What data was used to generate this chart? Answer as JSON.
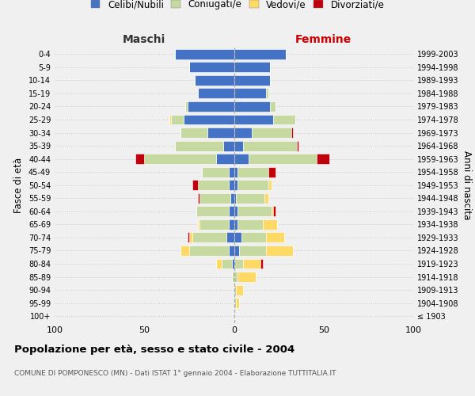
{
  "age_groups": [
    "100+",
    "95-99",
    "90-94",
    "85-89",
    "80-84",
    "75-79",
    "70-74",
    "65-69",
    "60-64",
    "55-59",
    "50-54",
    "45-49",
    "40-44",
    "35-39",
    "30-34",
    "25-29",
    "20-24",
    "15-19",
    "10-14",
    "5-9",
    "0-4"
  ],
  "birth_years": [
    "≤ 1903",
    "1904-1908",
    "1909-1913",
    "1914-1918",
    "1919-1923",
    "1924-1928",
    "1929-1933",
    "1934-1938",
    "1939-1943",
    "1944-1948",
    "1949-1953",
    "1954-1958",
    "1959-1963",
    "1964-1968",
    "1969-1973",
    "1974-1978",
    "1979-1983",
    "1984-1988",
    "1989-1993",
    "1994-1998",
    "1999-2003"
  ],
  "maschi_celibi": [
    0,
    0,
    0,
    0,
    1,
    3,
    4,
    3,
    3,
    2,
    3,
    3,
    10,
    6,
    15,
    28,
    26,
    20,
    22,
    25,
    33
  ],
  "maschi_coniugati": [
    0,
    0,
    0,
    1,
    6,
    22,
    19,
    16,
    18,
    17,
    17,
    15,
    40,
    27,
    15,
    7,
    1,
    0,
    0,
    0,
    0
  ],
  "maschi_vedovi": [
    0,
    0,
    0,
    0,
    3,
    5,
    2,
    1,
    0,
    0,
    0,
    0,
    0,
    0,
    0,
    1,
    0,
    0,
    0,
    0,
    0
  ],
  "maschi_divorziati": [
    0,
    0,
    0,
    0,
    0,
    0,
    1,
    0,
    0,
    1,
    3,
    0,
    5,
    0,
    0,
    0,
    0,
    0,
    0,
    0,
    0
  ],
  "femmine_nubili": [
    0,
    0,
    0,
    0,
    0,
    3,
    4,
    2,
    2,
    1,
    2,
    2,
    8,
    5,
    10,
    22,
    20,
    18,
    20,
    20,
    29
  ],
  "femmine_coniugate": [
    0,
    1,
    1,
    2,
    5,
    15,
    14,
    14,
    19,
    16,
    17,
    17,
    38,
    30,
    22,
    12,
    3,
    1,
    0,
    0,
    0
  ],
  "femmine_vedove": [
    0,
    2,
    4,
    10,
    10,
    15,
    10,
    8,
    1,
    2,
    2,
    0,
    0,
    0,
    0,
    0,
    0,
    0,
    0,
    0,
    0
  ],
  "femmine_divorziate": [
    0,
    0,
    0,
    0,
    1,
    0,
    0,
    0,
    1,
    0,
    0,
    4,
    7,
    1,
    1,
    0,
    0,
    0,
    0,
    0,
    0
  ],
  "color_celibi": "#4472c4",
  "color_coniugati": "#c5d9a0",
  "color_vedovi": "#ffd966",
  "color_divorziati": "#c0000b",
  "legend_labels": [
    "Celibi/Nubili",
    "Coniugati/e",
    "Vedovi/e",
    "Divorziati/e"
  ],
  "title": "Popolazione per età, sesso e stato civile - 2004",
  "subtitle": "COMUNE DI POMPONESCO (MN) - Dati ISTAT 1° gennaio 2004 - Elaborazione TUTTITALIA.IT",
  "ylabel_left": "Fasce di età",
  "ylabel_right": "Anni di nascita",
  "header_maschi": "Maschi",
  "header_femmine": "Femmine",
  "xlim": 100,
  "bg_color": "#f0f0f0"
}
